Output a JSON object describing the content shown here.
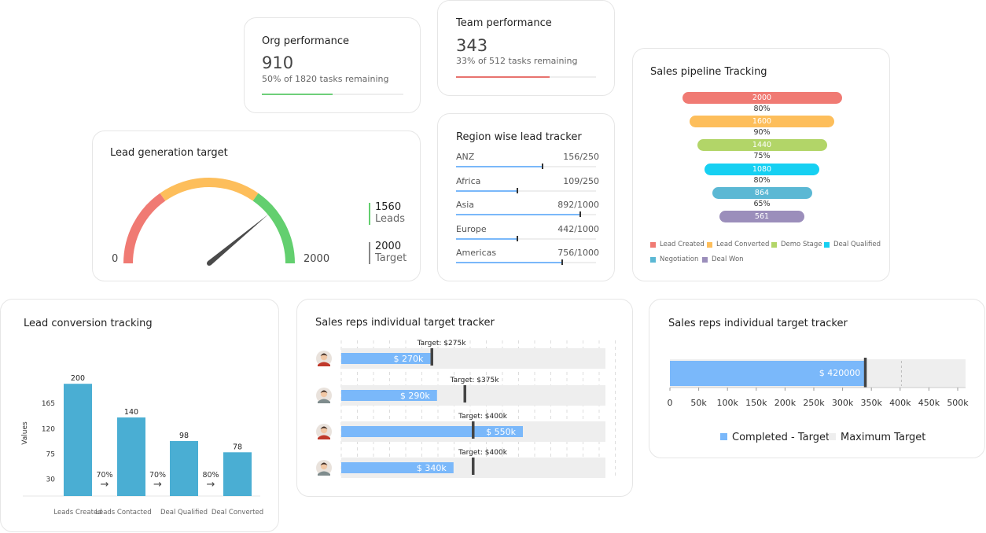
{
  "org_performance": {
    "title": "Org performance",
    "value": "910",
    "subtitle": "50% of 1820 tasks remaining",
    "progress": 0.5,
    "color": "#6fcf7a"
  },
  "team_performance": {
    "title": "Team performance",
    "value": "343",
    "subtitle": "33% of 512 tasks remaining",
    "progress": 0.67,
    "color": "#e8736f"
  },
  "lead_generation": {
    "title": "Lead generation target",
    "min_label": "0",
    "max_label": "2000",
    "leads_value": "1560",
    "leads_label": "Leads",
    "target_value": "2000",
    "target_label": "Target",
    "needle_value": 1560,
    "max": 2000,
    "band_colors": [
      "#f07a73",
      "#fdbe5b",
      "#63cf6f"
    ]
  },
  "region_tracker": {
    "title": "Region wise lead tracker",
    "regions": [
      {
        "name": "ANZ",
        "value_text": "156/250",
        "fraction": 0.62
      },
      {
        "name": "Africa",
        "value_text": "109/250",
        "fraction": 0.44
      },
      {
        "name": "Asia",
        "value_text": "892/1000",
        "fraction": 0.89
      },
      {
        "name": "Europe",
        "value_text": "442/1000",
        "fraction": 0.44
      },
      {
        "name": "Americas",
        "value_text": "756/1000",
        "fraction": 0.76
      }
    ]
  },
  "pipeline": {
    "title": "Sales pipeline Tracking",
    "stages": [
      {
        "name": "Lead Created",
        "value": "2000",
        "color": "#f07a73"
      },
      {
        "name": "Lead Converted",
        "value": "1600",
        "color": "#fdbe5b"
      },
      {
        "name": "Demo Stage",
        "value": "1440",
        "color": "#b2d568"
      },
      {
        "name": "Deal Qualified",
        "value": "1080",
        "color": "#16d0f2"
      },
      {
        "name": "Negotiation",
        "value": "864",
        "color": "#5bb8d4"
      },
      {
        "name": "Deal Won",
        "value": "561",
        "color": "#9b8ebb"
      }
    ],
    "conversions": [
      "80%",
      "90%",
      "75%",
      "80%",
      "65%"
    ]
  },
  "lead_conversion": {
    "title": "Lead conversion tracking",
    "ylabel": "Values",
    "yticks": [
      "165",
      "120",
      "75",
      "30"
    ],
    "arrow_glyph": "→",
    "color": "#4aaed3"
  },
  "reps_tracker": {
    "title": "Sales reps individual target tracker",
    "rows": [
      {
        "actual_label": "$ 270k",
        "target_label": "Target: $275k",
        "actual": 270,
        "target": 275
      },
      {
        "actual_label": "$ 290k",
        "target_label": "Target: $375k",
        "actual": 290,
        "target": 375
      },
      {
        "actual_label": "$ 550k",
        "target_label": "Target: $400k",
        "actual": 550,
        "target": 400
      },
      {
        "actual_label": "$ 340k",
        "target_label": "Target: $400k",
        "actual": 340,
        "target": 400
      }
    ],
    "scale_max": 800,
    "bar_color": "#7ab8fa"
  },
  "reps_tracker_2": {
    "title": "Sales reps individual target tracker",
    "bar_label": "$ 420000",
    "legend": [
      "Completed - Target",
      "Maximum Target"
    ],
    "legend_colors": [
      "#7ab8fa",
      "#eeeeee"
    ]
  },
  "chart_data": [
    {
      "type": "bar",
      "title": "Lead conversion tracking",
      "categories": [
        "Leads Created",
        "Leads Contacted",
        "Deal Qualified",
        "Deal Converted"
      ],
      "values": [
        200,
        140,
        98,
        78
      ],
      "conversion_rates": [
        "70%",
        "70%",
        "80%"
      ],
      "ylabel": "Values",
      "ylim": [
        0,
        210
      ],
      "yticks": [
        30,
        75,
        120,
        165
      ]
    },
    {
      "type": "bar",
      "title": "Sales reps individual target tracker",
      "orientation": "horizontal",
      "values": [
        420000
      ],
      "target": 350000,
      "maximum_target": 415000,
      "xlim": [
        0,
        530000
      ],
      "xticks": [
        "0",
        "50k",
        "100k",
        "150k",
        "200k",
        "250k",
        "300k",
        "350k",
        "400k",
        "450k",
        "500k"
      ]
    }
  ]
}
